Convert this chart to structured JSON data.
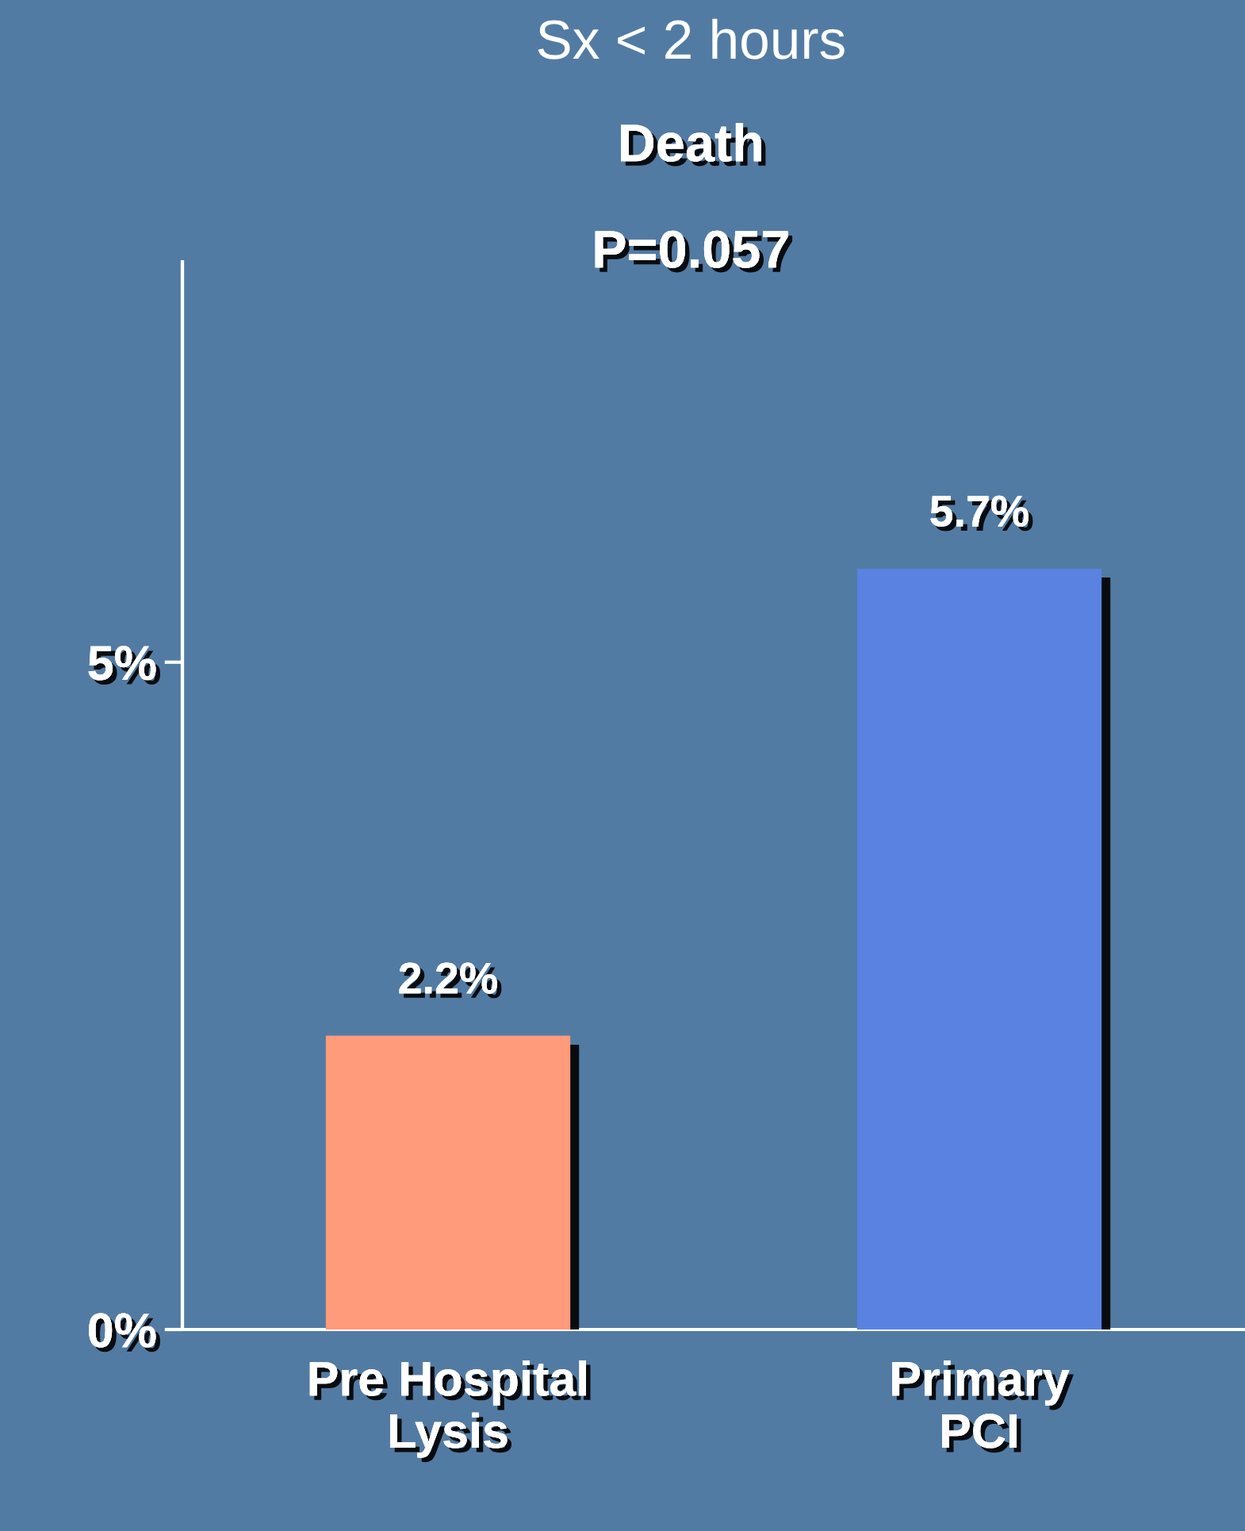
{
  "chart_data": {
    "type": "bar",
    "title": "Sx < 2 hours",
    "subtitle": "Death",
    "annotations": [
      "P=0.057"
    ],
    "categories": [
      "Pre Hospital\nLysis",
      "Primary\nPCI"
    ],
    "values": [
      2.2,
      5.7
    ],
    "colors": [
      "#ff9a7a",
      "#5a82e0"
    ],
    "value_labels": [
      "2.2%",
      "5.7%"
    ],
    "ylim": [
      0,
      8
    ],
    "yticks": [
      {
        "value": 0,
        "label": "0%"
      },
      {
        "value": 5,
        "label": "5%"
      }
    ],
    "grid": false,
    "legend": false
  }
}
